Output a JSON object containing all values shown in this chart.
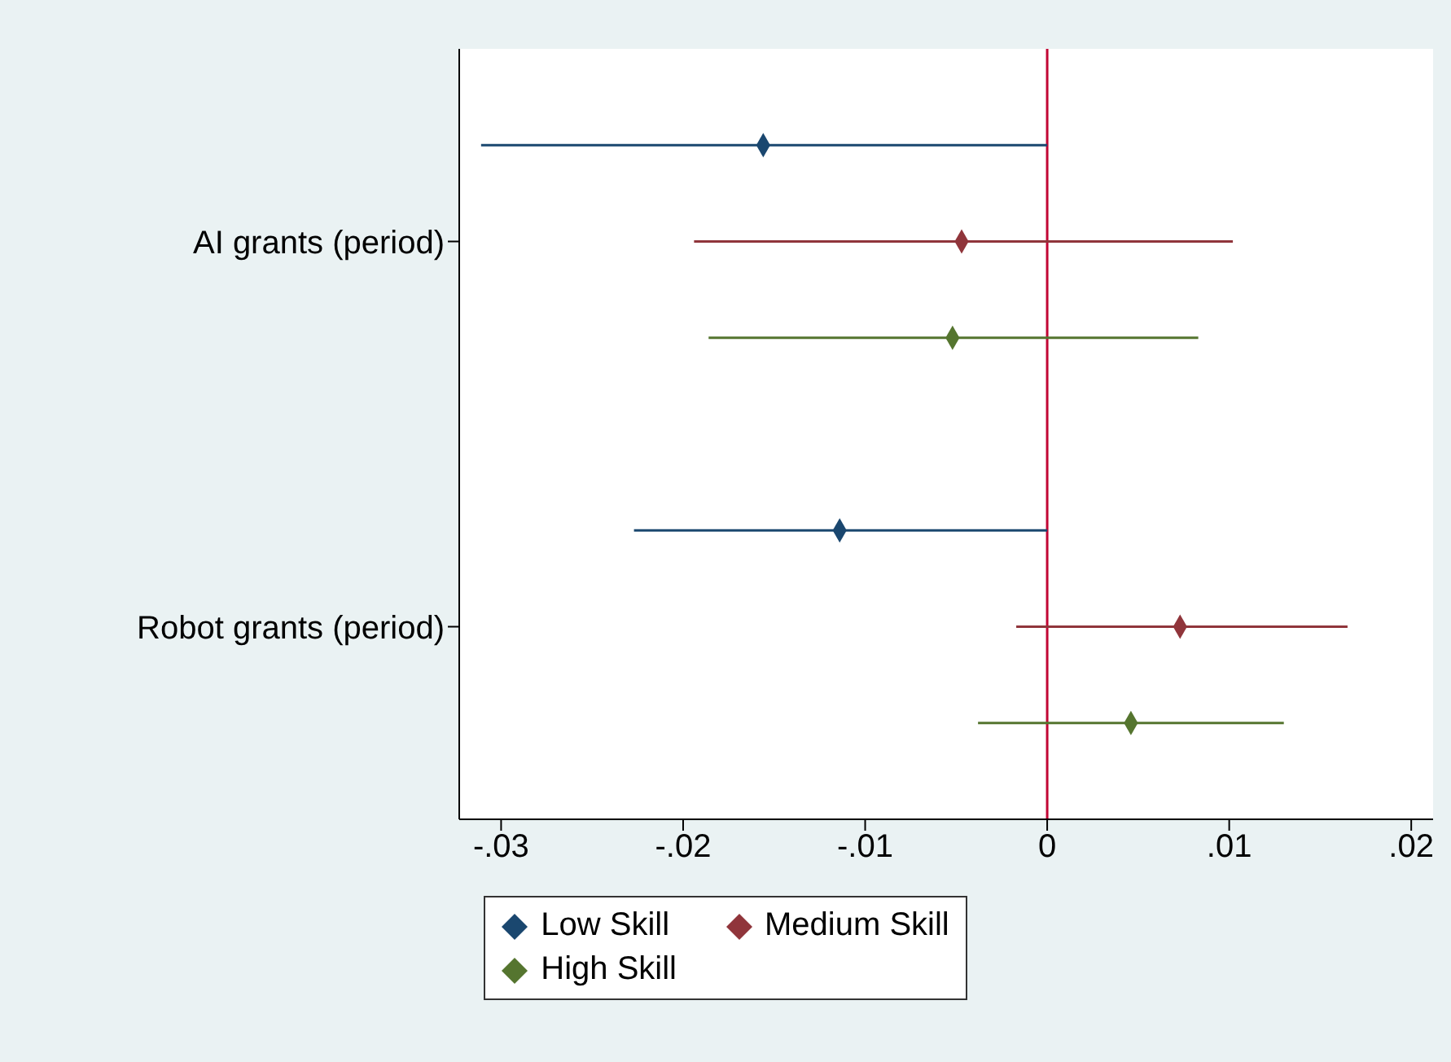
{
  "chart_data": {
    "type": "scatter",
    "orientation": "horizontal",
    "categories": [
      null,
      "AI grants (period)",
      null,
      null,
      null,
      "Robot grants (period)",
      null
    ],
    "series": [
      {
        "name": "Low Skill",
        "color": "#1a476f",
        "values": [
          -0.0156,
          null,
          null,
          null,
          -0.0114,
          null,
          null
        ],
        "errors": [
          [
            -0.0311,
            0
          ],
          null,
          null,
          null,
          [
            -0.0227,
            0
          ],
          null,
          null
        ]
      },
      {
        "name": "Medium Skill",
        "color": "#90353b",
        "values": [
          null,
          -0.0047,
          null,
          null,
          null,
          0.0073,
          null
        ],
        "errors": [
          null,
          [
            -0.0194,
            0.0102
          ],
          null,
          null,
          null,
          [
            -0.0017,
            0.0165
          ],
          null
        ]
      },
      {
        "name": "High Skill",
        "color": "#55752f",
        "values": [
          null,
          null,
          -0.0052,
          null,
          null,
          null,
          0.0046
        ],
        "errors": [
          null,
          null,
          [
            -0.0186,
            0.0083
          ],
          null,
          null,
          null,
          [
            -0.0038,
            0.013
          ]
        ]
      }
    ],
    "xlim": [
      -0.0323,
      0.0212
    ],
    "xticks": [
      {
        "value": -0.03,
        "label": "-.03"
      },
      {
        "value": -0.02,
        "label": "-.02"
      },
      {
        "value": -0.01,
        "label": "-.01"
      },
      0,
      {
        "value": 0.01,
        "label": ".01"
      },
      {
        "value": 0.02,
        "label": ".02"
      }
    ],
    "ref_lines": [
      {
        "axis": "x",
        "value": 0,
        "color": "#c10534"
      }
    ],
    "marker": "diamond",
    "grid": false,
    "legend": "bottom"
  }
}
